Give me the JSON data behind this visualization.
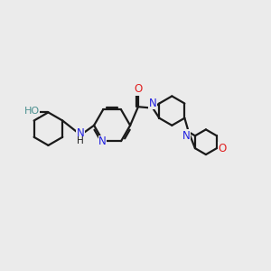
{
  "background_color": "#ebebeb",
  "bond_color": "#1a1a1a",
  "atom_colors": {
    "N": "#2020e0",
    "O": "#e02020",
    "HO": "#4a9090"
  },
  "figsize": [
    3.0,
    3.0
  ],
  "dpi": 100,
  "lw": 1.6,
  "fs": 8.5
}
